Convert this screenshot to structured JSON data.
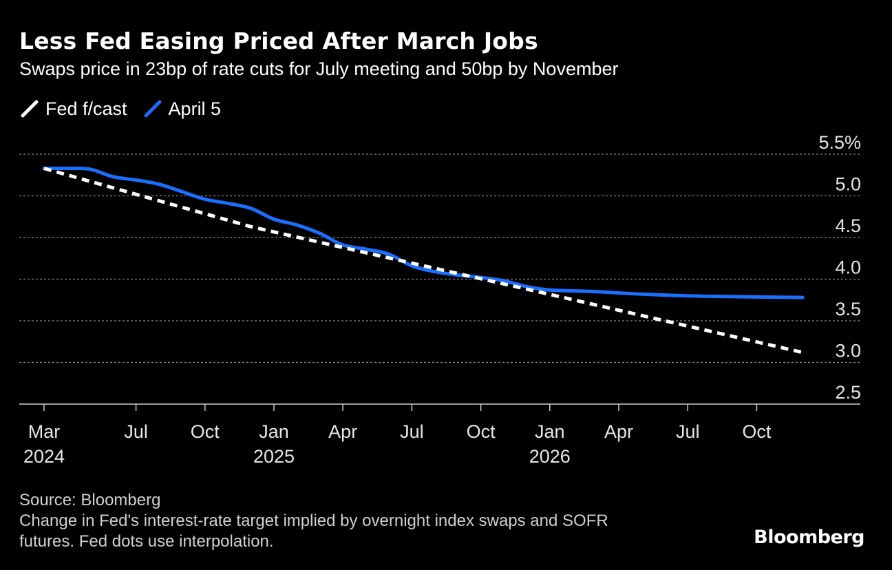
{
  "chart_data": {
    "type": "line",
    "title": "Less Fed Easing Priced After March Jobs",
    "subtitle": "Swaps price in 23bp of rate cuts for July meeting and 50bp by November",
    "xlabel": "",
    "ylabel": "",
    "y_ticks": [
      "5.5%",
      "5.0",
      "4.5",
      "4.0",
      "3.5",
      "3.0",
      "2.5"
    ],
    "y_tick_values": [
      5.5,
      5.0,
      4.5,
      4.0,
      3.5,
      3.0,
      2.5
    ],
    "ylim": [
      2.5,
      5.5
    ],
    "x_ticks": [
      {
        "month": "Mar",
        "year": "2024",
        "date": "2024-03"
      },
      {
        "month": "Jul",
        "year": "",
        "date": "2024-07"
      },
      {
        "month": "Oct",
        "year": "",
        "date": "2024-10"
      },
      {
        "month": "Jan",
        "year": "2025",
        "date": "2025-01"
      },
      {
        "month": "Apr",
        "year": "",
        "date": "2025-04"
      },
      {
        "month": "Jul",
        "year": "",
        "date": "2025-07"
      },
      {
        "month": "Oct",
        "year": "",
        "date": "2025-10"
      },
      {
        "month": "Jan",
        "year": "2026",
        "date": "2026-01"
      },
      {
        "month": "Apr",
        "year": "",
        "date": "2026-04"
      },
      {
        "month": "Jul",
        "year": "",
        "date": "2026-07"
      },
      {
        "month": "Oct",
        "year": "",
        "date": "2026-10"
      }
    ],
    "grid": true,
    "legend_position": "top-left",
    "series": [
      {
        "name": "Fed f/cast",
        "color": "#ffffff",
        "style": "dashed",
        "points": [
          {
            "x": "2024-03",
            "y": 5.33
          },
          {
            "x": "2024-12",
            "y": 4.63
          },
          {
            "x": "2025-12",
            "y": 3.88
          },
          {
            "x": "2026-12",
            "y": 3.12
          }
        ]
      },
      {
        "name": "April 5",
        "color": "#1a6fff",
        "style": "solid",
        "points": [
          {
            "x": "2024-03",
            "y": 5.33
          },
          {
            "x": "2024-04",
            "y": 5.33
          },
          {
            "x": "2024-05",
            "y": 5.32
          },
          {
            "x": "2024-06",
            "y": 5.23
          },
          {
            "x": "2024-07",
            "y": 5.19
          },
          {
            "x": "2024-08",
            "y": 5.14
          },
          {
            "x": "2024-09",
            "y": 5.05
          },
          {
            "x": "2024-10",
            "y": 4.96
          },
          {
            "x": "2024-11",
            "y": 4.91
          },
          {
            "x": "2024-12",
            "y": 4.85
          },
          {
            "x": "2025-01",
            "y": 4.72
          },
          {
            "x": "2025-02",
            "y": 4.65
          },
          {
            "x": "2025-03",
            "y": 4.55
          },
          {
            "x": "2025-04",
            "y": 4.41
          },
          {
            "x": "2025-05",
            "y": 4.36
          },
          {
            "x": "2025-06",
            "y": 4.3
          },
          {
            "x": "2025-07",
            "y": 4.16
          },
          {
            "x": "2025-08",
            "y": 4.09
          },
          {
            "x": "2025-09",
            "y": 4.05
          },
          {
            "x": "2025-10",
            "y": 4.02
          },
          {
            "x": "2025-11",
            "y": 3.98
          },
          {
            "x": "2025-12",
            "y": 3.91
          },
          {
            "x": "2026-01",
            "y": 3.87
          },
          {
            "x": "2026-03",
            "y": 3.85
          },
          {
            "x": "2026-05",
            "y": 3.82
          },
          {
            "x": "2026-07",
            "y": 3.8
          },
          {
            "x": "2026-09",
            "y": 3.79
          },
          {
            "x": "2026-12",
            "y": 3.78
          }
        ]
      }
    ]
  },
  "footer": {
    "source": "Source: Bloomberg",
    "note_line1": "Change in Fed's interest-rate target implied by overnight index swaps and SOFR",
    "note_line2": "futures. Fed dots use interpolation."
  },
  "brand": "Bloomberg"
}
